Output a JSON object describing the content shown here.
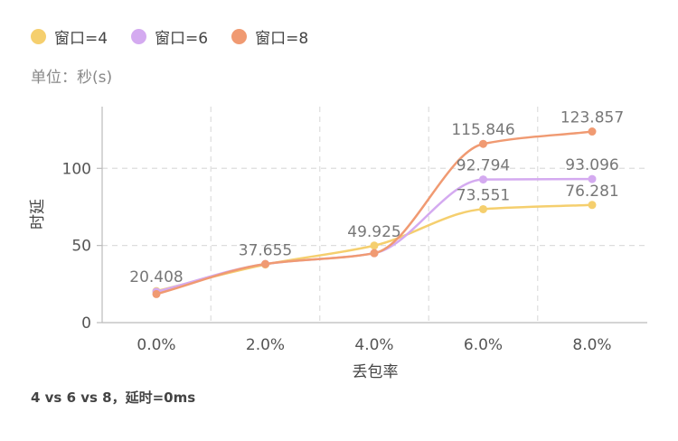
{
  "legend": [
    {
      "label": "窗口=4",
      "color": "#f5cf6e"
    },
    {
      "label": "窗口=6",
      "color": "#d4aaf0"
    },
    {
      "label": "窗口=8",
      "color": "#f09a72"
    }
  ],
  "unit_label": "单位：秒(s)",
  "caption": "4 vs 6 vs 8，延时=0ms",
  "chart_data": {
    "type": "line",
    "categories": [
      "0.0%",
      "2.0%",
      "4.0%",
      "6.0%",
      "8.0%"
    ],
    "xlabel": "丢包率",
    "ylabel": "时延",
    "ylim": [
      0,
      140
    ],
    "yticks": [
      0,
      50,
      100
    ],
    "grid": true,
    "legend_position": "top-left",
    "series": [
      {
        "name": "窗口=4",
        "color": "#f5cf6e",
        "values": [
          20.408,
          37.655,
          49.925,
          73.551,
          76.281
        ],
        "labels": [
          "20.408",
          "37.655",
          "49.925",
          "73.551",
          "76.281"
        ]
      },
      {
        "name": "窗口=6",
        "color": "#d4aaf0",
        "values": [
          20.0,
          38.0,
          45.0,
          92.794,
          93.096
        ],
        "labels": [
          "",
          "",
          "",
          "92.794",
          "93.096"
        ]
      },
      {
        "name": "窗口=8",
        "color": "#f09a72",
        "values": [
          18.5,
          38.0,
          45.0,
          115.846,
          123.857
        ],
        "labels": [
          "",
          "",
          "",
          "115.846",
          "123.857"
        ]
      }
    ]
  }
}
